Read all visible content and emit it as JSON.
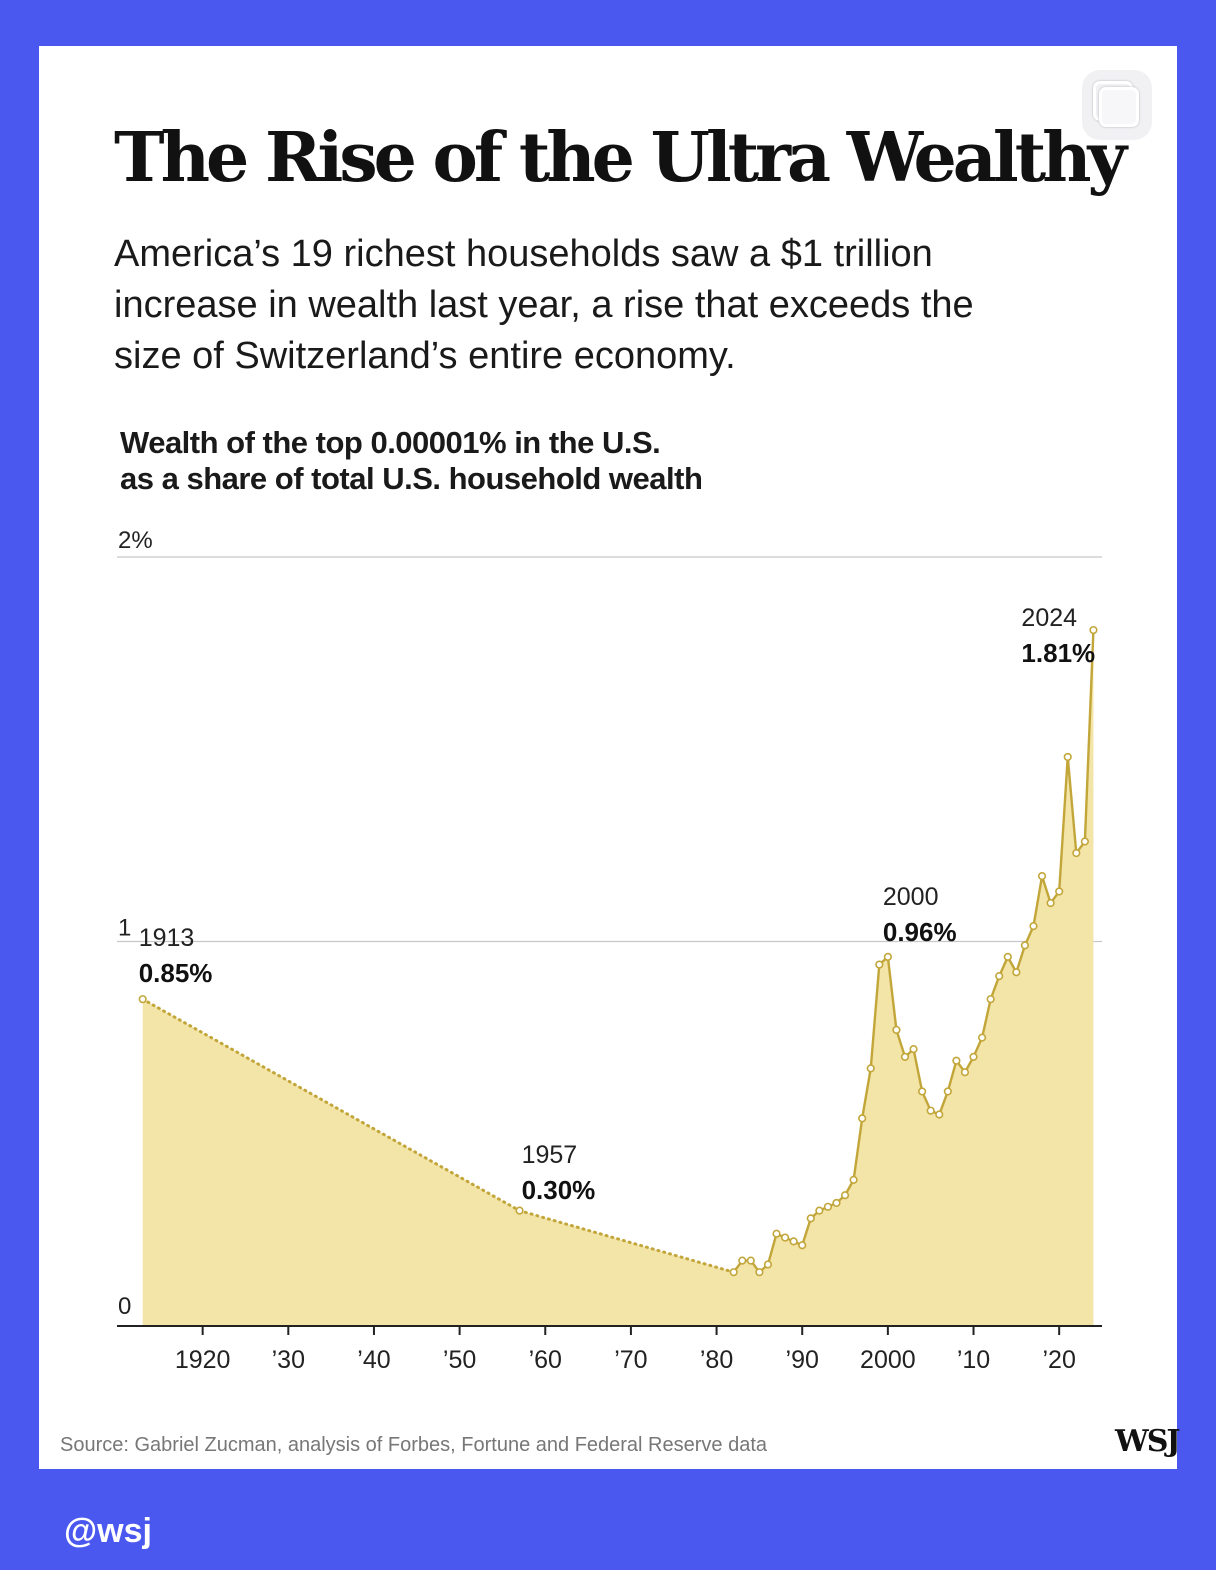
{
  "page": {
    "background_color": "#4a58ef",
    "card_color": "#ffffff",
    "title": "The Rise of the Ultra Wealthy",
    "subtitle": "America’s 19 richest households saw a $1 trillion increase in wealth last year, a rise that exceeds the size of Switzerland’s entire economy.",
    "source": "Source: Gabriel Zucman, analysis of Forbes, Fortune and Federal Reserve data",
    "logo": "WSJ",
    "handle": "@wsj",
    "copy_icon": "copy-icon"
  },
  "chart_data": {
    "type": "area",
    "title": "Wealth of the top 0.00001% in the U.S. as a share of total U.S. household wealth",
    "title_lines": [
      "Wealth of the top 0.00001% in the U.S.",
      "as a share of total U.S. household wealth"
    ],
    "xlabel": "",
    "ylabel": "",
    "xlim": [
      1911,
      2025
    ],
    "ylim": [
      0,
      2
    ],
    "y_ticks": [
      0,
      1,
      2
    ],
    "y_tick_labels": [
      "0",
      "1",
      "2%"
    ],
    "x_ticks": [
      1920,
      1930,
      1940,
      1950,
      1960,
      1970,
      1980,
      1990,
      2000,
      2010,
      2020
    ],
    "x_tick_labels": [
      "1920",
      "’30",
      "’40",
      "’50",
      "’60",
      "’70",
      "’80",
      "’90",
      "2000",
      "’10",
      "’20"
    ],
    "grid": "horizontal",
    "fill_color": "#f3e4a8",
    "line_color": "#c2a63a",
    "interpolated_segments": [
      [
        1913,
        1957
      ],
      [
        1957,
        1982
      ]
    ],
    "series": [
      {
        "x": [
          1913,
          1957,
          1982,
          1983,
          1984,
          1985,
          1986,
          1987,
          1988,
          1989,
          1990,
          1991,
          1992,
          1993,
          1994,
          1995,
          1996,
          1997,
          1998,
          1999,
          2000,
          2001,
          2002,
          2003,
          2004,
          2005,
          2006,
          2007,
          2008,
          2009,
          2010,
          2011,
          2012,
          2013,
          2014,
          2015,
          2016,
          2017,
          2018,
          2019,
          2020,
          2021,
          2022,
          2023,
          2024
        ],
        "y": [
          0.85,
          0.3,
          0.14,
          0.17,
          0.17,
          0.14,
          0.16,
          0.24,
          0.23,
          0.22,
          0.21,
          0.28,
          0.3,
          0.31,
          0.32,
          0.34,
          0.38,
          0.54,
          0.67,
          0.94,
          0.96,
          0.77,
          0.7,
          0.72,
          0.61,
          0.56,
          0.55,
          0.61,
          0.69,
          0.66,
          0.7,
          0.75,
          0.85,
          0.91,
          0.96,
          0.92,
          0.99,
          1.04,
          1.17,
          1.1,
          1.13,
          1.48,
          1.23,
          1.26,
          1.81
        ]
      }
    ],
    "annotations": [
      {
        "x": 1913,
        "year": "1913",
        "value": "0.85%",
        "y": 0.85
      },
      {
        "x": 1957,
        "year": "1957",
        "value": "0.30%",
        "y": 0.3
      },
      {
        "x": 2000,
        "year": "2000",
        "value": "0.96%",
        "y": 0.96
      },
      {
        "x": 2024,
        "year": "2024",
        "value": "1.81%",
        "y": 1.81
      }
    ]
  }
}
